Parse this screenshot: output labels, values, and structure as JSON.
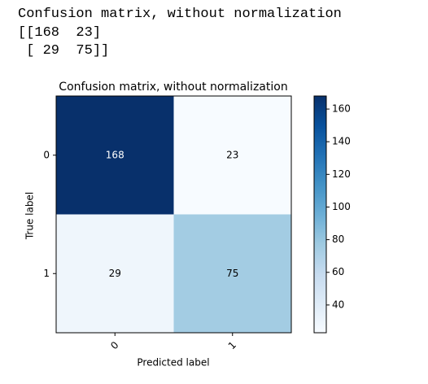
{
  "console": {
    "lines": [
      "Confusion matrix, without normalization",
      "[[168  23]",
      " [ 29  75]]"
    ]
  },
  "chart_data": {
    "type": "heatmap",
    "title": "Confusion matrix, without normalization",
    "xlabel": "Predicted label",
    "ylabel": "True label",
    "x_categories": [
      "0",
      "1"
    ],
    "y_categories": [
      "0",
      "1"
    ],
    "values": [
      [
        168,
        23
      ],
      [
        29,
        75
      ]
    ],
    "colormap": "Blues",
    "clim": [
      23,
      168
    ],
    "cticks": [
      40,
      60,
      80,
      100,
      120,
      140,
      160
    ]
  }
}
